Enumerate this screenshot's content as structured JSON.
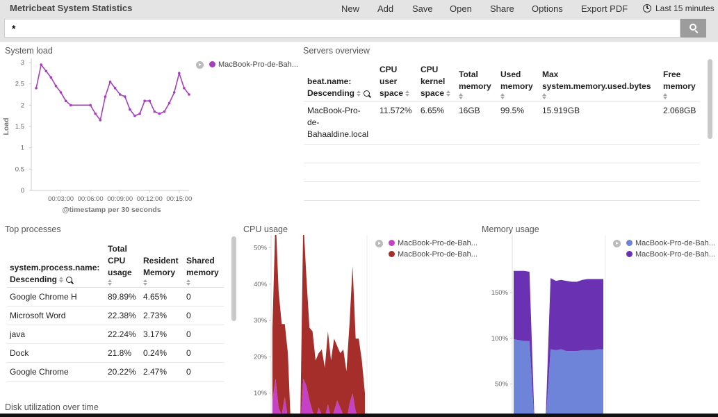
{
  "app": {
    "title": "Metricbeat System Statistics"
  },
  "menu": [
    "New",
    "Add",
    "Save",
    "Open",
    "Share",
    "Options",
    "Export PDF"
  ],
  "time_range": "Last 15 minutes",
  "query": {
    "value": "*"
  },
  "panels": {
    "system_load": {
      "title": "System load",
      "ylabel": "Load",
      "xlabel": "@timestamp per 30 seconds",
      "legend": "MacBook-Pro-de-Bah...",
      "color": "#a53fbb"
    },
    "servers_overview": {
      "title": "Servers overview",
      "headers": [
        "beat.name: Descending",
        "CPU user space",
        "CPU kernel space",
        "Total memory",
        "Used memory",
        "Max system.memory.used.bytes",
        "Free memory"
      ],
      "rows": [
        [
          "MacBook-Pro-de-Bahaaldine.local",
          "11.572%",
          "6.65%",
          "16GB",
          "99.5%",
          "15.919GB",
          "2.068GB"
        ]
      ]
    },
    "top_processes": {
      "title": "Top processes",
      "headers": [
        "system.process.name: Descending",
        "Total CPU usage",
        "Resident Memory",
        "Shared memory"
      ],
      "rows": [
        [
          "Google Chrome H",
          "89.89%",
          "4.65%",
          "0"
        ],
        [
          "Microsoft Word",
          "22.38%",
          "2.73%",
          "0"
        ],
        [
          "java",
          "22.24%",
          "3.17%",
          "0"
        ],
        [
          "Dock",
          "21.8%",
          "0.24%",
          "0"
        ],
        [
          "Google Chrome",
          "20.22%",
          "2.47%",
          "0"
        ]
      ]
    },
    "cpu_usage": {
      "title": "CPU usage",
      "legend": [
        {
          "label": "MacBook-Pro-de-Bah...",
          "color": "#c542c7"
        },
        {
          "label": "MacBook-Pro-de-Bah...",
          "color": "#a52d2a"
        }
      ]
    },
    "memory_usage": {
      "title": "Memory usage",
      "legend": [
        {
          "label": "MacBook-Pro-de-Bah...",
          "color": "#6d84d9"
        },
        {
          "label": "MacBook-Pro-de-Bah...",
          "color": "#6a31b3"
        }
      ]
    },
    "disk_utilization": {
      "title": "Disk utilization over time"
    }
  },
  "chart_data": [
    {
      "type": "line",
      "title": "System load",
      "xlabel": "@timestamp per 30 seconds",
      "ylabel": "Load",
      "ylim": [
        0,
        3
      ],
      "yticks": [
        "0",
        "0.5",
        "1",
        "1.5",
        "2",
        "2.5",
        "3"
      ],
      "xticks": [
        "00:03:00",
        "00:06:00",
        "00:09:00",
        "00:12:00",
        "00:15:00"
      ],
      "x_minutes": [
        0.5,
        1,
        1.5,
        2,
        2.5,
        3,
        3.5,
        4,
        6,
        6.5,
        7,
        7.5,
        8,
        8.5,
        9,
        9.5,
        10,
        10.5,
        11,
        11.5,
        12,
        12.5,
        13,
        13.5,
        14,
        14.5,
        15,
        15.5,
        16
      ],
      "series": [
        {
          "name": "MacBook-Pro-de-Bah...",
          "values": [
            2.4,
            2.95,
            2.8,
            2.65,
            2.45,
            2.3,
            2.1,
            2.0,
            2.0,
            1.8,
            1.65,
            2.2,
            2.55,
            2.4,
            2.25,
            2.2,
            1.9,
            1.75,
            1.8,
            2.1,
            2.1,
            1.85,
            1.8,
            1.85,
            2.05,
            2.3,
            2.75,
            2.4,
            2.25
          ]
        }
      ]
    },
    {
      "type": "area",
      "title": "CPU usage",
      "ylim": [
        0,
        50
      ],
      "yticks": [
        "10%",
        "20%",
        "30%",
        "40%",
        "50%"
      ],
      "series": [
        {
          "name": "MacBook-Pro-de-Bah...",
          "color": "#c542c7",
          "values": [
            8,
            14,
            6,
            4,
            9,
            3,
            0,
            0,
            0,
            0,
            14,
            12,
            8,
            5,
            3,
            6,
            4,
            3,
            7,
            3,
            5,
            8,
            6,
            4,
            2,
            7,
            10,
            5,
            3,
            4,
            2
          ]
        },
        {
          "name": "MacBook-Pro-de-Bah...",
          "color": "#a52d2a",
          "values": [
            20,
            45,
            32,
            25,
            20,
            18,
            0,
            0,
            0,
            0,
            44,
            30,
            20,
            22,
            16,
            15,
            18,
            14,
            20,
            16,
            20,
            15,
            15,
            18,
            14,
            22,
            35,
            20,
            22,
            15,
            8
          ]
        }
      ]
    },
    {
      "type": "area",
      "title": "Memory usage",
      "yticks": [
        "50%",
        "100%",
        "150%"
      ],
      "series": [
        {
          "name": "MacBook-Pro-de-Bah...",
          "color": "#6d84d9",
          "values": [
            99,
            98,
            97,
            97,
            0,
            0,
            0,
            88,
            87,
            88,
            86,
            86,
            86,
            87,
            87,
            87,
            88,
            88
          ]
        },
        {
          "name": "MacBook-Pro-de-Bah...",
          "color": "#6a31b3",
          "values": [
            75,
            76,
            77,
            76,
            0,
            0,
            0,
            78,
            76,
            76,
            77,
            76,
            76,
            77,
            78,
            78,
            77,
            77
          ]
        }
      ]
    }
  ]
}
